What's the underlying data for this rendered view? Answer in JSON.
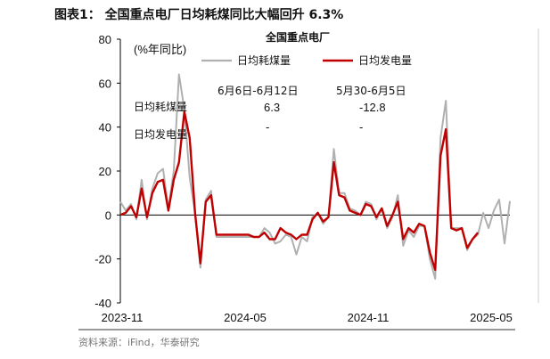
{
  "figure": {
    "title": "图表1：  全国重点电厂日均耗煤同比大幅回升 6.3%",
    "source": "资料来源：iFind，华泰研究"
  },
  "chart_data": {
    "type": "line",
    "title": "全国重点电厂",
    "ylabel": "(%年同比)",
    "ylim": [
      -40,
      80
    ],
    "yticks": [
      -40,
      -20,
      0,
      20,
      40,
      60,
      80
    ],
    "xlim": [
      "2023-11",
      "2025-06"
    ],
    "xticks": [
      "2023-11",
      "2024-05",
      "2024-11",
      "2025-05"
    ],
    "legend": "top-right",
    "colors": {
      "coal": "#b0b0b0",
      "power": "#c00000",
      "axis": "#000000",
      "frame": "#cccccc"
    },
    "annotation_table": {
      "headers": [
        "6月6日-6月12日",
        "5月30-6月5日"
      ],
      "rows": [
        {
          "label": "日均耗煤量",
          "values": [
            "6.3",
            "-12.8"
          ]
        },
        {
          "label": "日均发电量",
          "values": [
            "-",
            "-"
          ]
        }
      ]
    },
    "series": [
      {
        "name": "日均耗煤量",
        "color": "#b0b0b0",
        "points": [
          [
            0,
            6
          ],
          [
            1,
            2
          ],
          [
            2,
            5
          ],
          [
            3,
            -2
          ],
          [
            4,
            16
          ],
          [
            5,
            -2
          ],
          [
            6,
            12
          ],
          [
            7,
            19
          ],
          [
            8,
            21
          ],
          [
            9,
            3
          ],
          [
            10,
            20
          ],
          [
            11,
            64
          ],
          [
            12,
            48
          ],
          [
            13,
            17
          ],
          [
            14,
            1
          ],
          [
            15,
            -24
          ],
          [
            16,
            7
          ],
          [
            17,
            11
          ],
          [
            18,
            -10
          ],
          [
            19,
            -10
          ],
          [
            20,
            -10
          ],
          [
            21,
            -10
          ],
          [
            22,
            -10
          ],
          [
            23,
            -10
          ],
          [
            24,
            -10
          ],
          [
            25,
            -10
          ],
          [
            26,
            -10
          ],
          [
            27,
            -6
          ],
          [
            28,
            -8
          ],
          [
            29,
            -13
          ],
          [
            30,
            -12
          ],
          [
            31,
            -9
          ],
          [
            32,
            -10
          ],
          [
            33,
            -18
          ],
          [
            34,
            -10
          ],
          [
            35,
            -12
          ],
          [
            36,
            -1
          ],
          [
            37,
            1
          ],
          [
            38,
            -4
          ],
          [
            39,
            -1
          ],
          [
            40,
            30
          ],
          [
            41,
            10
          ],
          [
            42,
            10
          ],
          [
            43,
            3
          ],
          [
            44,
            2
          ],
          [
            45,
            0
          ],
          [
            46,
            6
          ],
          [
            47,
            5
          ],
          [
            48,
            -2
          ],
          [
            49,
            3
          ],
          [
            50,
            -6
          ],
          [
            51,
            -1
          ],
          [
            52,
            9
          ],
          [
            53,
            -14
          ],
          [
            54,
            -7
          ],
          [
            55,
            -10
          ],
          [
            56,
            -5
          ],
          [
            57,
            -5
          ],
          [
            58,
            -20
          ],
          [
            59,
            -29
          ],
          [
            60,
            35
          ],
          [
            61,
            52
          ],
          [
            62,
            -6
          ],
          [
            63,
            -6
          ],
          [
            64,
            -6
          ],
          [
            65,
            -16
          ],
          [
            66,
            -11
          ],
          [
            67,
            -9
          ],
          [
            68,
            1
          ],
          [
            69,
            -6
          ],
          [
            70,
            2
          ],
          [
            71,
            7
          ],
          [
            72,
            -13
          ],
          [
            73,
            6.3
          ]
        ]
      },
      {
        "name": "日均发电量",
        "color": "#c00000",
        "points": [
          [
            0,
            0
          ],
          [
            1,
            1
          ],
          [
            2,
            4
          ],
          [
            3,
            -1
          ],
          [
            4,
            12
          ],
          [
            5,
            -1
          ],
          [
            6,
            10
          ],
          [
            7,
            15
          ],
          [
            8,
            16
          ],
          [
            9,
            2
          ],
          [
            10,
            16
          ],
          [
            11,
            24
          ],
          [
            12,
            47
          ],
          [
            13,
            35
          ],
          [
            14,
            1
          ],
          [
            15,
            -22
          ],
          [
            16,
            6
          ],
          [
            17,
            9
          ],
          [
            18,
            -9
          ],
          [
            19,
            -9
          ],
          [
            20,
            -9
          ],
          [
            21,
            -9
          ],
          [
            22,
            -9
          ],
          [
            23,
            -9
          ],
          [
            24,
            -9
          ],
          [
            25,
            -10
          ],
          [
            26,
            -10
          ],
          [
            27,
            -8
          ],
          [
            28,
            -11
          ],
          [
            29,
            -11
          ],
          [
            30,
            -6
          ],
          [
            31,
            -8
          ],
          [
            32,
            -9
          ],
          [
            33,
            -11
          ],
          [
            34,
            -9
          ],
          [
            35,
            -9
          ],
          [
            36,
            -2
          ],
          [
            37,
            1
          ],
          [
            38,
            -3
          ],
          [
            39,
            -1
          ],
          [
            40,
            24
          ],
          [
            41,
            9
          ],
          [
            42,
            8
          ],
          [
            43,
            2
          ],
          [
            44,
            1
          ],
          [
            45,
            0
          ],
          [
            46,
            5
          ],
          [
            47,
            4
          ],
          [
            48,
            -1
          ],
          [
            49,
            3
          ],
          [
            50,
            -5
          ],
          [
            51,
            0
          ],
          [
            52,
            6
          ],
          [
            53,
            -11
          ],
          [
            54,
            -6
          ],
          [
            55,
            -8
          ],
          [
            56,
            -4
          ],
          [
            57,
            -5
          ],
          [
            58,
            -17
          ],
          [
            59,
            -25
          ],
          [
            60,
            27
          ],
          [
            61,
            39
          ],
          [
            62,
            -6
          ],
          [
            63,
            -7
          ],
          [
            64,
            -6
          ],
          [
            65,
            -15
          ],
          [
            66,
            -11
          ],
          [
            67,
            -8
          ]
        ]
      }
    ]
  }
}
